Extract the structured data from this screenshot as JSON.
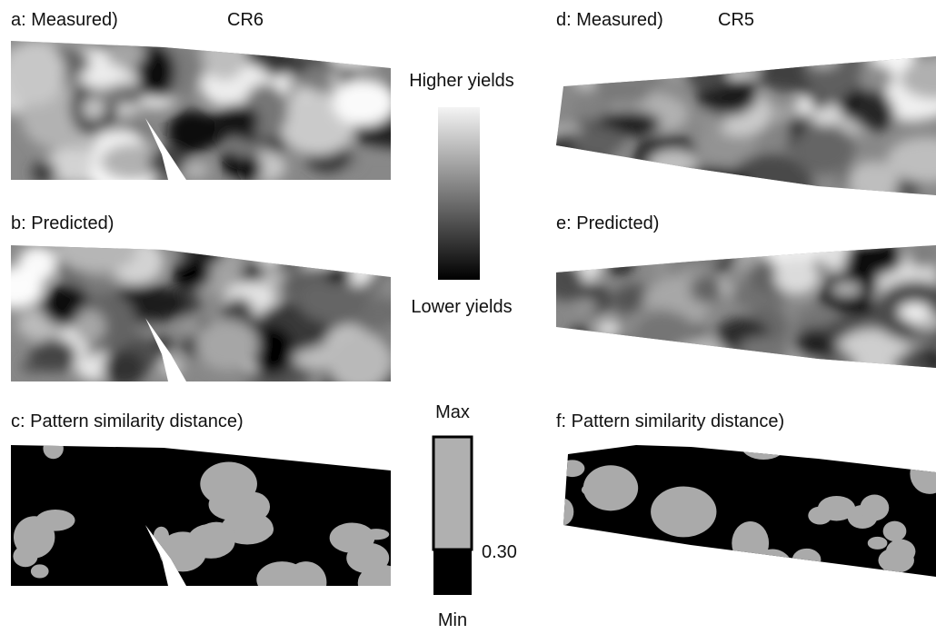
{
  "panels": [
    {
      "label": "a: Measured)",
      "site": "CR6"
    },
    {
      "label": "b: Predicted)"
    },
    {
      "label": "c: Pattern similarity distance)"
    },
    {
      "label": "d: Measured)",
      "site": "CR5"
    },
    {
      "label": "e: Predicted)"
    },
    {
      "label": "f: Pattern similarity distance)"
    }
  ],
  "yield_legend": {
    "top": "Higher yields",
    "bottom": "Lower yields"
  },
  "distance_legend": {
    "top": "Max",
    "threshold": "0.30",
    "bottom": "Min"
  }
}
